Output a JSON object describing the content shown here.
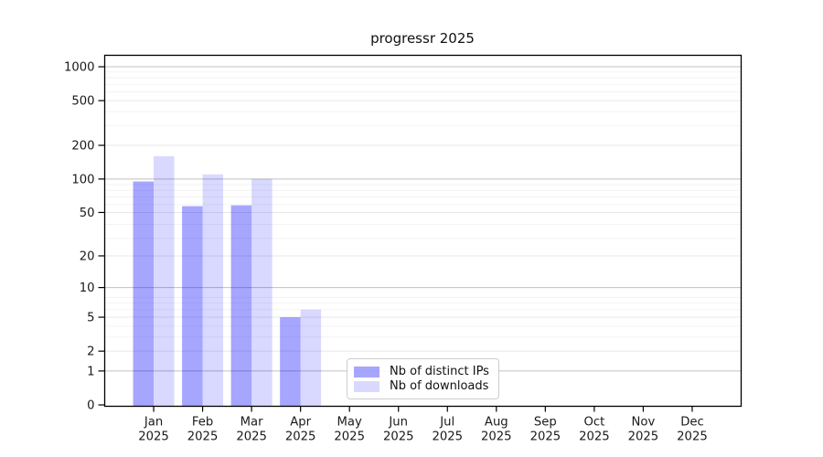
{
  "chart_data": {
    "type": "bar",
    "title": "progressr 2025",
    "categories": [
      "Jan",
      "Feb",
      "Mar",
      "Apr",
      "May",
      "Jun",
      "Jul",
      "Aug",
      "Sep",
      "Oct",
      "Nov",
      "Dec"
    ],
    "x_tick_second_line": "2025",
    "series": [
      {
        "name": "Nb of distinct IPs",
        "color": "rgba(0,0,255,0.35)",
        "values": [
          95,
          57,
          58,
          5,
          0,
          0,
          0,
          0,
          0,
          0,
          0,
          0
        ]
      },
      {
        "name": "Nb of downloads",
        "color": "rgba(0,0,255,0.15)",
        "values": [
          160,
          110,
          100,
          6,
          0,
          0,
          0,
          0,
          0,
          0,
          0,
          0
        ]
      }
    ],
    "y_axis": {
      "scale": "log1p",
      "tick_values": [
        0,
        1,
        2,
        5,
        10,
        20,
        50,
        100,
        200,
        500,
        1000
      ],
      "tick_labels": [
        "0",
        "1",
        "2",
        "5",
        "10",
        "20",
        "50",
        "100",
        "200",
        "500",
        "1000"
      ],
      "power_tick_values": [
        1,
        10,
        100,
        1000
      ],
      "minor_values": [
        3,
        4,
        6,
        7,
        8,
        29,
        39,
        59,
        69,
        79,
        89,
        299,
        399,
        599,
        699,
        799,
        899
      ]
    },
    "grid": {
      "on": true,
      "major_color": "#c0c0c0",
      "mid_color": "#e7e7e7",
      "minor_color": "#f3f3f3"
    },
    "axis_color": "#000000",
    "tick_label_color": "#1a1a1a",
    "legend_location": "lower center",
    "background": "#ffffff"
  }
}
